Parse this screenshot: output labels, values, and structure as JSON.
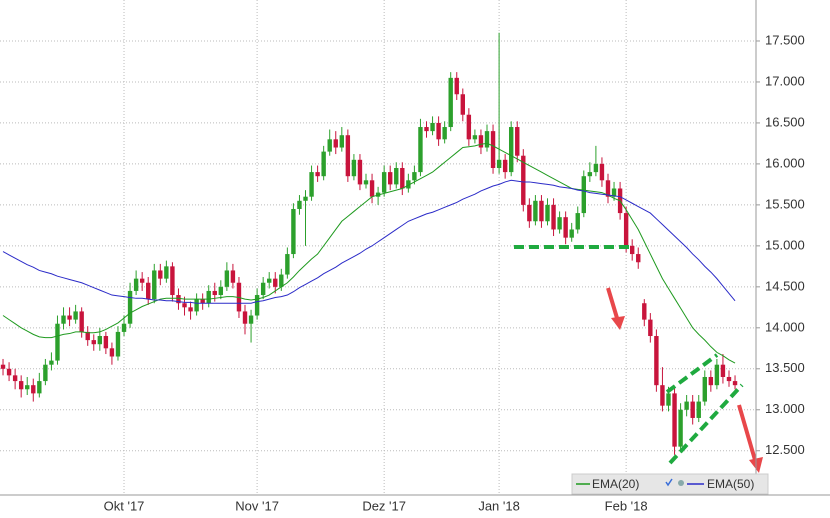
{
  "chart_data": {
    "type": "candlestick",
    "categories": [
      null,
      null,
      null,
      null,
      null,
      null,
      null,
      null,
      null,
      null,
      null,
      null,
      null,
      null,
      null,
      null,
      null,
      null,
      null,
      null,
      "Okt '17",
      null,
      null,
      null,
      null,
      null,
      null,
      null,
      null,
      null,
      null,
      null,
      null,
      null,
      null,
      null,
      null,
      null,
      null,
      null,
      null,
      null,
      "Nov '17",
      null,
      null,
      null,
      null,
      null,
      null,
      null,
      null,
      null,
      null,
      null,
      null,
      null,
      null,
      null,
      null,
      null,
      null,
      null,
      null,
      "Dez '17",
      null,
      null,
      null,
      null,
      null,
      null,
      null,
      null,
      null,
      null,
      null,
      null,
      null,
      null,
      null,
      null,
      null,
      null,
      "Jan '18",
      null,
      null,
      null,
      null,
      null,
      null,
      null,
      null,
      null,
      null,
      null,
      null,
      null,
      null,
      null,
      null,
      null,
      null,
      null,
      null,
      "Feb '18",
      null,
      null,
      null,
      null,
      null,
      null,
      null,
      null,
      null,
      null,
      null,
      null,
      null,
      null,
      null,
      null,
      null,
      null
    ],
    "ohlc": [
      [
        13.55,
        13.62,
        13.42,
        13.5
      ],
      [
        13.5,
        13.58,
        13.35,
        13.42
      ],
      [
        13.42,
        13.5,
        13.25,
        13.35
      ],
      [
        13.35,
        13.42,
        13.15,
        13.25
      ],
      [
        13.25,
        13.4,
        13.18,
        13.3
      ],
      [
        13.3,
        13.38,
        13.1,
        13.2
      ],
      [
        13.2,
        13.45,
        13.15,
        13.35
      ],
      [
        13.35,
        13.62,
        13.3,
        13.55
      ],
      [
        13.55,
        13.7,
        13.48,
        13.6
      ],
      [
        13.6,
        14.15,
        13.55,
        14.05
      ],
      [
        14.05,
        14.25,
        13.98,
        14.15
      ],
      [
        14.15,
        14.25,
        14.02,
        14.1
      ],
      [
        14.1,
        14.28,
        14.05,
        14.2
      ],
      [
        14.2,
        14.25,
        13.88,
        13.95
      ],
      [
        13.95,
        14.02,
        13.78,
        13.85
      ],
      [
        13.85,
        13.92,
        13.72,
        13.8
      ],
      [
        13.8,
        14.0,
        13.72,
        13.9
      ],
      [
        13.9,
        13.95,
        13.68,
        13.75
      ],
      [
        13.75,
        13.82,
        13.55,
        13.65
      ],
      [
        13.65,
        14.02,
        13.6,
        13.95
      ],
      [
        13.95,
        14.15,
        13.9,
        14.05
      ],
      [
        14.05,
        14.55,
        14.0,
        14.45
      ],
      [
        14.45,
        14.7,
        14.4,
        14.6
      ],
      [
        14.6,
        14.68,
        14.45,
        14.55
      ],
      [
        14.55,
        14.62,
        14.28,
        14.35
      ],
      [
        14.35,
        14.78,
        14.3,
        14.7
      ],
      [
        14.7,
        14.78,
        14.52,
        14.6
      ],
      [
        14.6,
        14.82,
        14.55,
        14.75
      ],
      [
        14.75,
        14.8,
        14.32,
        14.4
      ],
      [
        14.4,
        14.48,
        14.22,
        14.3
      ],
      [
        14.3,
        14.38,
        14.15,
        14.25
      ],
      [
        14.25,
        14.32,
        14.1,
        14.2
      ],
      [
        14.2,
        14.42,
        14.15,
        14.35
      ],
      [
        14.35,
        14.42,
        14.22,
        14.3
      ],
      [
        14.3,
        14.52,
        14.25,
        14.45
      ],
      [
        14.45,
        14.55,
        14.32,
        14.4
      ],
      [
        14.4,
        14.58,
        14.35,
        14.5
      ],
      [
        14.5,
        14.8,
        14.45,
        14.7
      ],
      [
        14.7,
        14.78,
        14.48,
        14.55
      ],
      [
        14.55,
        14.62,
        14.12,
        14.2
      ],
      [
        14.2,
        14.28,
        13.92,
        14.05
      ],
      [
        14.05,
        14.22,
        13.82,
        14.15
      ],
      [
        14.15,
        14.48,
        14.1,
        14.4
      ],
      [
        14.4,
        14.62,
        14.35,
        14.55
      ],
      [
        14.55,
        14.68,
        14.48,
        14.6
      ],
      [
        14.6,
        14.68,
        14.42,
        14.5
      ],
      [
        14.5,
        14.72,
        14.45,
        14.65
      ],
      [
        14.65,
        14.98,
        14.6,
        14.9
      ],
      [
        14.9,
        15.52,
        14.85,
        15.45
      ],
      [
        15.45,
        15.62,
        15.38,
        15.55
      ],
      [
        15.55,
        15.68,
        15.0,
        15.6
      ],
      [
        15.6,
        15.98,
        15.55,
        15.9
      ],
      [
        15.9,
        15.98,
        15.78,
        15.85
      ],
      [
        15.85,
        16.22,
        15.8,
        16.15
      ],
      [
        16.15,
        16.42,
        16.1,
        16.3
      ],
      [
        16.3,
        16.4,
        16.12,
        16.2
      ],
      [
        16.2,
        16.45,
        16.15,
        16.35
      ],
      [
        16.35,
        16.42,
        15.78,
        15.85
      ],
      [
        15.85,
        16.12,
        15.8,
        16.05
      ],
      [
        16.05,
        16.12,
        15.68,
        15.75
      ],
      [
        15.75,
        15.88,
        15.7,
        15.8
      ],
      [
        15.8,
        15.88,
        15.52,
        15.6
      ],
      [
        15.6,
        15.72,
        15.5,
        15.65
      ],
      [
        15.65,
        15.98,
        15.6,
        15.9
      ],
      [
        15.9,
        15.98,
        15.68,
        15.75
      ],
      [
        15.75,
        16.02,
        15.7,
        15.95
      ],
      [
        15.95,
        16.02,
        15.62,
        15.7
      ],
      [
        15.7,
        15.88,
        15.65,
        15.8
      ],
      [
        15.8,
        15.98,
        15.75,
        15.9
      ],
      [
        15.9,
        16.55,
        15.85,
        16.45
      ],
      [
        16.45,
        16.52,
        16.32,
        16.4
      ],
      [
        16.4,
        16.58,
        16.35,
        16.5
      ],
      [
        16.5,
        16.58,
        16.22,
        16.3
      ],
      [
        16.3,
        16.52,
        16.25,
        16.45
      ],
      [
        16.45,
        17.12,
        16.4,
        17.05
      ],
      [
        17.05,
        17.12,
        16.78,
        16.85
      ],
      [
        16.85,
        16.92,
        16.52,
        16.6
      ],
      [
        16.6,
        16.68,
        16.22,
        16.3
      ],
      [
        16.3,
        16.42,
        16.25,
        16.35
      ],
      [
        16.35,
        16.42,
        16.12,
        16.2
      ],
      [
        16.2,
        16.48,
        16.15,
        16.4
      ],
      [
        16.4,
        16.48,
        15.88,
        15.95
      ],
      [
        15.95,
        17.6,
        15.88,
        16.05
      ],
      [
        16.05,
        16.12,
        15.82,
        15.9
      ],
      [
        15.9,
        16.52,
        15.85,
        16.45
      ],
      [
        16.45,
        16.52,
        16.02,
        16.1
      ],
      [
        16.1,
        16.18,
        15.42,
        15.5
      ],
      [
        15.5,
        15.58,
        15.22,
        15.3
      ],
      [
        15.3,
        15.62,
        15.25,
        15.55
      ],
      [
        15.55,
        15.62,
        15.22,
        15.3
      ],
      [
        15.3,
        15.58,
        15.25,
        15.5
      ],
      [
        15.5,
        15.58,
        15.12,
        15.2
      ],
      [
        15.2,
        15.42,
        15.15,
        15.35
      ],
      [
        15.35,
        15.42,
        15.02,
        15.1
      ],
      [
        15.1,
        15.28,
        15.05,
        15.2
      ],
      [
        15.2,
        15.48,
        15.15,
        15.4
      ],
      [
        15.4,
        15.92,
        15.35,
        15.85
      ],
      [
        15.85,
        16.02,
        15.78,
        15.9
      ],
      [
        15.9,
        16.22,
        15.85,
        16.0
      ],
      [
        16.0,
        16.08,
        15.72,
        15.8
      ],
      [
        15.8,
        15.88,
        15.52,
        15.6
      ],
      [
        15.6,
        15.78,
        15.55,
        15.7
      ],
      [
        15.7,
        15.78,
        15.32,
        15.4
      ],
      [
        15.4,
        15.48,
        14.92,
        15.0
      ],
      [
        15.0,
        15.08,
        14.82,
        14.9
      ],
      [
        14.9,
        14.98,
        14.72,
        14.8
      ],
      [
        14.3,
        14.35,
        14.02,
        14.1
      ],
      [
        14.1,
        14.18,
        13.82,
        13.9
      ],
      [
        13.9,
        13.98,
        13.22,
        13.3
      ],
      [
        13.3,
        13.52,
        12.98,
        13.05
      ],
      [
        13.05,
        13.28,
        12.98,
        13.2
      ],
      [
        13.2,
        13.28,
        12.45,
        12.55
      ],
      [
        12.55,
        13.08,
        12.48,
        13.0
      ],
      [
        13.0,
        13.18,
        12.92,
        13.1
      ],
      [
        13.1,
        13.18,
        12.82,
        12.9
      ],
      [
        12.9,
        13.18,
        12.85,
        13.1
      ],
      [
        13.1,
        13.48,
        13.05,
        13.4
      ],
      [
        13.4,
        13.48,
        13.22,
        13.3
      ],
      [
        13.3,
        13.62,
        13.25,
        13.55
      ],
      [
        13.55,
        13.68,
        13.32,
        13.4
      ],
      [
        13.4,
        13.48,
        13.28,
        13.35
      ],
      [
        13.35,
        13.42,
        13.25,
        13.3
      ]
    ],
    "series": [
      {
        "name": "EMA(20)",
        "color": "#1f9a1f",
        "values": [
          14.15,
          14.1,
          14.05,
          14.0,
          13.96,
          13.92,
          13.89,
          13.88,
          13.88,
          13.9,
          13.92,
          13.93,
          13.95,
          13.95,
          13.94,
          13.94,
          13.95,
          13.98,
          14.02,
          14.06,
          14.12,
          14.18,
          14.22,
          14.26,
          14.29,
          14.32,
          14.35,
          14.36,
          14.36,
          14.36,
          14.35,
          14.35,
          14.35,
          14.35,
          14.35,
          14.36,
          14.37,
          14.38,
          14.38,
          14.37,
          14.35,
          14.34,
          14.35,
          14.37,
          14.4,
          14.45,
          14.5,
          14.55,
          14.62,
          14.7,
          14.77,
          14.84,
          14.9,
          15.0,
          15.1,
          15.2,
          15.3,
          15.36,
          15.42,
          15.48,
          15.54,
          15.6,
          15.62,
          15.64,
          15.66,
          15.68,
          15.7,
          15.74,
          15.78,
          15.82,
          15.86,
          15.9,
          15.96,
          16.02,
          16.08,
          16.14,
          16.2,
          16.21,
          16.22,
          16.24,
          16.25,
          16.22,
          16.18,
          16.14,
          16.1,
          16.06,
          16.02,
          15.98,
          15.94,
          15.9,
          15.86,
          15.82,
          15.78,
          15.74,
          15.7,
          15.69,
          15.68,
          15.67,
          15.66,
          15.65,
          15.62,
          15.58,
          15.55,
          15.44,
          15.32,
          15.2,
          15.05,
          14.9,
          14.75,
          14.6,
          14.48,
          14.36,
          14.24,
          14.12,
          14.0,
          13.92,
          13.85,
          13.77,
          13.7,
          13.66,
          13.61,
          13.57
        ]
      },
      {
        "name": "EMA(50)",
        "color": "#2b2bc8",
        "values": [
          14.93,
          14.89,
          14.85,
          14.81,
          14.77,
          14.74,
          14.7,
          14.68,
          14.66,
          14.63,
          14.61,
          14.59,
          14.57,
          14.55,
          14.52,
          14.49,
          14.46,
          14.43,
          14.4,
          14.39,
          14.38,
          14.37,
          14.36,
          14.36,
          14.35,
          14.34,
          14.34,
          14.33,
          14.33,
          14.32,
          14.31,
          14.31,
          14.3,
          14.3,
          14.3,
          14.3,
          14.3,
          14.3,
          14.3,
          14.3,
          14.3,
          14.3,
          14.32,
          14.33,
          14.35,
          14.37,
          14.38,
          14.4,
          14.44,
          14.49,
          14.53,
          14.57,
          14.61,
          14.66,
          14.7,
          14.74,
          14.79,
          14.83,
          14.87,
          14.91,
          14.96,
          15.0,
          15.05,
          15.1,
          15.15,
          15.2,
          15.25,
          15.3,
          15.33,
          15.36,
          15.39,
          15.41,
          15.44,
          15.47,
          15.5,
          15.53,
          15.57,
          15.6,
          15.63,
          15.67,
          15.7,
          15.73,
          15.75,
          15.78,
          15.8,
          15.79,
          15.78,
          15.78,
          15.77,
          15.76,
          15.75,
          15.74,
          15.72,
          15.71,
          15.7,
          15.68,
          15.67,
          15.65,
          15.64,
          15.63,
          15.62,
          15.61,
          15.6,
          15.56,
          15.52,
          15.48,
          15.44,
          15.4,
          15.33,
          15.26,
          15.19,
          15.12,
          15.05,
          14.98,
          14.9,
          14.83,
          14.75,
          14.68,
          14.6,
          14.51,
          14.42,
          14.33
        ]
      }
    ],
    "up_color": "#2ca02c",
    "down_color": "#c8143c",
    "xlim": [
      -0.5,
      124.3
    ],
    "ylim": [
      11.96,
      18.0
    ],
    "yticks": [
      {
        "value": 12.5,
        "label": "12.500"
      },
      {
        "value": 13,
        "label": "13.000"
      },
      {
        "value": 13.5,
        "label": "13.500"
      },
      {
        "value": 14,
        "label": "14.000"
      },
      {
        "value": 14.5,
        "label": "14.500"
      },
      {
        "value": 15,
        "label": "15.000"
      },
      {
        "value": 15.5,
        "label": "15.500"
      },
      {
        "value": 16,
        "label": "16.000"
      },
      {
        "value": 16.5,
        "label": "16.500"
      },
      {
        "value": 17,
        "label": "17.000"
      },
      {
        "value": 17.5,
        "label": "17.500"
      }
    ],
    "grid": true
  }
}
